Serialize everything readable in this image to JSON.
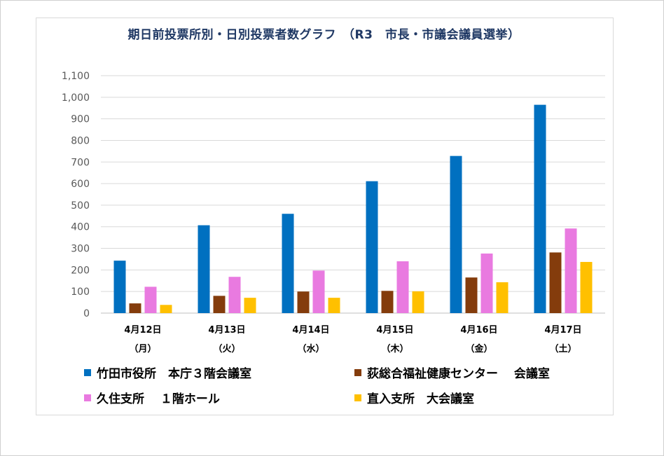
{
  "chart_data": {
    "type": "bar",
    "title": "期日前投票所別・日別投票者数グラフ　（R3　市長・市議会議員選挙）",
    "categories": [
      "4月12日",
      "4月13日",
      "4月14日",
      "4月15日",
      "4月16日",
      "4月17日"
    ],
    "category_weekdays": [
      "（月）",
      "（火）",
      "（水）",
      "（木）",
      "（金）",
      "（土）"
    ],
    "ylim": [
      0,
      1100
    ],
    "yticks": [
      "0",
      "100",
      "200",
      "300",
      "400",
      "500",
      "600",
      "700",
      "800",
      "900",
      "1,000",
      "1,100"
    ],
    "grid": true,
    "legend_position": "bottom",
    "series": [
      {
        "name": "竹田市役所　本庁３階会議室",
        "color": "#0070c0",
        "values": [
          243,
          407,
          460,
          611,
          728,
          965
        ]
      },
      {
        "name": "荻総合福祉健康センター　 会議室",
        "color": "#843c0c",
        "values": [
          45,
          80,
          100,
          103,
          165,
          281
        ]
      },
      {
        "name": "久住支所　 １階ホール",
        "color": "#e97ae0",
        "values": [
          122,
          168,
          197,
          240,
          276,
          392
        ]
      },
      {
        "name": "直入支所　大会議室",
        "color": "#ffc000",
        "values": [
          38,
          71,
          71,
          101,
          143,
          237
        ]
      }
    ]
  }
}
